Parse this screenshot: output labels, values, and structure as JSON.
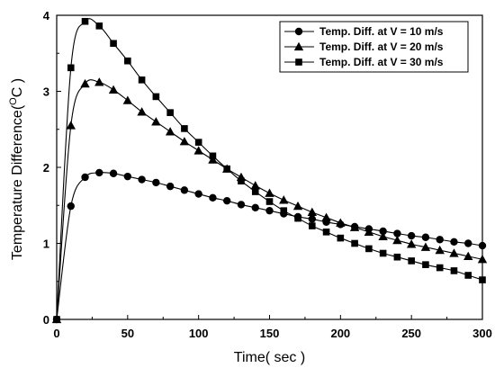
{
  "chart_data": {
    "type": "line",
    "title": "",
    "xlabel": "Time( sec )",
    "ylabel": "Temperature Difference(",
    "ylabel_super": "O",
    "ylabel_tail": "C )",
    "xlim": [
      0,
      300
    ],
    "ylim": [
      0,
      4
    ],
    "xticks": [
      0,
      50,
      100,
      150,
      200,
      250,
      300
    ],
    "yticks": [
      0,
      1,
      2,
      3,
      4
    ],
    "grid": false,
    "legend_position": "top-right",
    "series": [
      {
        "name": "Temp. Diff. at V = 10 m/s",
        "marker": "circle",
        "x": [
          0,
          10,
          20,
          30,
          40,
          50,
          60,
          70,
          80,
          90,
          100,
          110,
          120,
          130,
          140,
          150,
          160,
          170,
          180,
          190,
          200,
          210,
          220,
          230,
          240,
          250,
          260,
          270,
          280,
          290,
          300
        ],
        "y": [
          0,
          1.49,
          1.87,
          1.93,
          1.92,
          1.88,
          1.84,
          1.8,
          1.75,
          1.7,
          1.65,
          1.6,
          1.56,
          1.51,
          1.47,
          1.43,
          1.39,
          1.35,
          1.32,
          1.28,
          1.25,
          1.22,
          1.19,
          1.16,
          1.13,
          1.1,
          1.08,
          1.05,
          1.02,
          1.0,
          0.97
        ]
      },
      {
        "name": "Temp. Diff. at V = 20 m/s",
        "marker": "triangle",
        "x": [
          0,
          10,
          20,
          30,
          40,
          50,
          60,
          70,
          80,
          90,
          100,
          110,
          120,
          130,
          140,
          150,
          160,
          170,
          180,
          190,
          200,
          210,
          220,
          230,
          240,
          250,
          260,
          270,
          280,
          290,
          300
        ],
        "y": [
          0,
          2.55,
          3.1,
          3.12,
          3.02,
          2.88,
          2.73,
          2.6,
          2.47,
          2.34,
          2.22,
          2.1,
          1.98,
          1.87,
          1.76,
          1.66,
          1.57,
          1.49,
          1.41,
          1.34,
          1.27,
          1.21,
          1.15,
          1.09,
          1.04,
          0.99,
          0.95,
          0.91,
          0.87,
          0.83,
          0.79
        ]
      },
      {
        "name": "Temp. Diff. at V = 30 m/s",
        "marker": "square",
        "x": [
          0,
          10,
          20,
          30,
          40,
          50,
          60,
          70,
          80,
          90,
          100,
          110,
          120,
          130,
          140,
          150,
          160,
          170,
          180,
          190,
          200,
          210,
          220,
          230,
          240,
          250,
          260,
          270,
          280,
          290,
          300
        ],
        "y": [
          0,
          3.31,
          3.92,
          3.86,
          3.63,
          3.4,
          3.15,
          2.93,
          2.72,
          2.51,
          2.33,
          2.15,
          1.98,
          1.82,
          1.68,
          1.55,
          1.43,
          1.33,
          1.23,
          1.15,
          1.07,
          1.0,
          0.93,
          0.87,
          0.82,
          0.77,
          0.72,
          0.68,
          0.64,
          0.58,
          0.52
        ]
      }
    ]
  }
}
